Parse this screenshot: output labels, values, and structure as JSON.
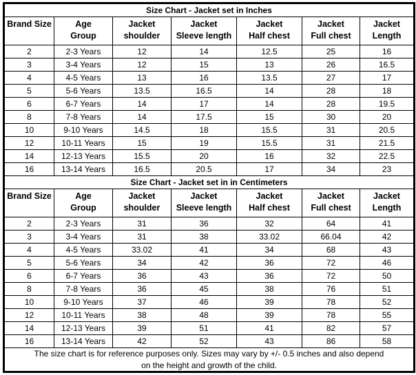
{
  "sections": [
    {
      "title": "Size Chart - Jacket set in Inches",
      "headers": [
        [
          "Brand Size"
        ],
        [
          "Age",
          "Group"
        ],
        [
          "Jacket",
          "shoulder"
        ],
        [
          "Jacket",
          "Sleeve length"
        ],
        [
          "Jacket",
          "Half chest"
        ],
        [
          "Jacket",
          "Full chest"
        ],
        [
          "Jacket",
          "Length"
        ]
      ],
      "rows": [
        [
          "2",
          "2-3 Years",
          "12",
          "14",
          "12.5",
          "25",
          "16"
        ],
        [
          "3",
          "3-4 Years",
          "12",
          "15",
          "13",
          "26",
          "16.5"
        ],
        [
          "4",
          "4-5 Years",
          "13",
          "16",
          "13.5",
          "27",
          "17"
        ],
        [
          "5",
          "5-6 Years",
          "13.5",
          "16.5",
          "14",
          "28",
          "18"
        ],
        [
          "6",
          "6-7 Years",
          "14",
          "17",
          "14",
          "28",
          "19.5"
        ],
        [
          "8",
          "7-8 Years",
          "14",
          "17.5",
          "15",
          "30",
          "20"
        ],
        [
          "10",
          "9-10 Years",
          "14.5",
          "18",
          "15.5",
          "31",
          "20.5"
        ],
        [
          "12",
          "10-11 Years",
          "15",
          "19",
          "15.5",
          "31",
          "21.5"
        ],
        [
          "14",
          "12-13 Years",
          "15.5",
          "20",
          "16",
          "32",
          "22.5"
        ],
        [
          "16",
          "13-14 Years",
          "16.5",
          "20.5",
          "17",
          "34",
          "23"
        ]
      ]
    },
    {
      "title": "Size Chart -  Jacket set in in Centimeters",
      "headers": [
        [
          "Brand Size"
        ],
        [
          "Age",
          "Group"
        ],
        [
          "Jacket",
          "shoulder"
        ],
        [
          "Jacket",
          "Sleeve length"
        ],
        [
          "Jacket",
          "Half chest"
        ],
        [
          "Jacket",
          "Full chest"
        ],
        [
          "Jacket",
          "Length"
        ]
      ],
      "rows": [
        [
          "2",
          "2-3 Years",
          "31",
          "36",
          "32",
          "64",
          "41"
        ],
        [
          "3",
          "3-4 Years",
          "31",
          "38",
          "33.02",
          "66.04",
          "42"
        ],
        [
          "4",
          "4-5 Years",
          "33.02",
          "41",
          "34",
          "68",
          "43"
        ],
        [
          "5",
          "5-6 Years",
          "34",
          "42",
          "36",
          "72",
          "46"
        ],
        [
          "6",
          "6-7 Years",
          "36",
          "43",
          "36",
          "72",
          "50"
        ],
        [
          "8",
          "7-8 Years",
          "36",
          "45",
          "38",
          "76",
          "51"
        ],
        [
          "10",
          "9-10 Years",
          "37",
          "46",
          "39",
          "78",
          "52"
        ],
        [
          "12",
          "10-11 Years",
          "38",
          "48",
          "39",
          "78",
          "55"
        ],
        [
          "14",
          "12-13 Years",
          "39",
          "51",
          "41",
          "82",
          "57"
        ],
        [
          "16",
          "13-14 Years",
          "42",
          "52",
          "43",
          "86",
          "58"
        ]
      ]
    }
  ],
  "footer": {
    "line1": "The size chart is for reference purposes only. Sizes may vary by +/- 0.5 inches and also depend",
    "line2": "on the height and growth of the child."
  },
  "colors": {
    "text": "#000000",
    "border": "#000000",
    "background": "#ffffff"
  }
}
